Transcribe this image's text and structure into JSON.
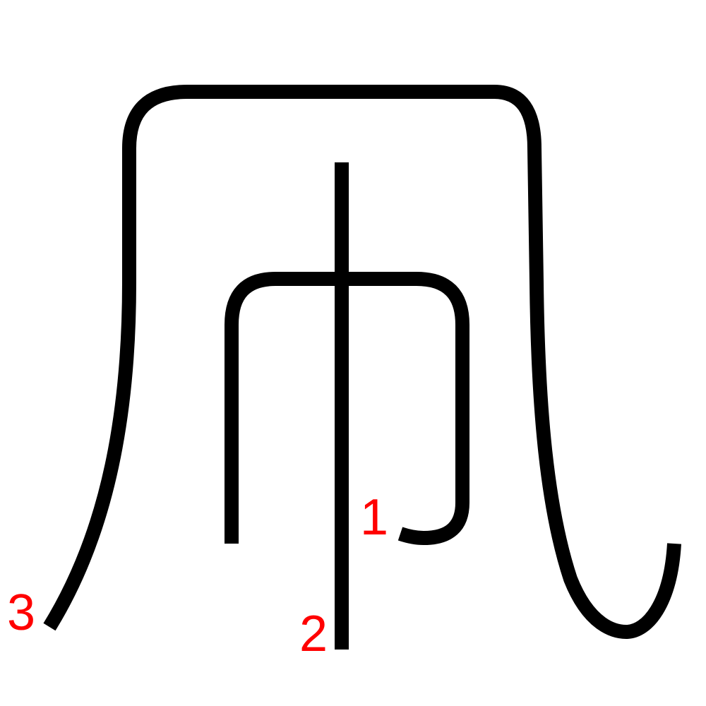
{
  "diagram": {
    "stroke_color": "#000000",
    "label_color": "#ff0000",
    "stroke_numbers": [
      "1",
      "2",
      "3"
    ]
  }
}
